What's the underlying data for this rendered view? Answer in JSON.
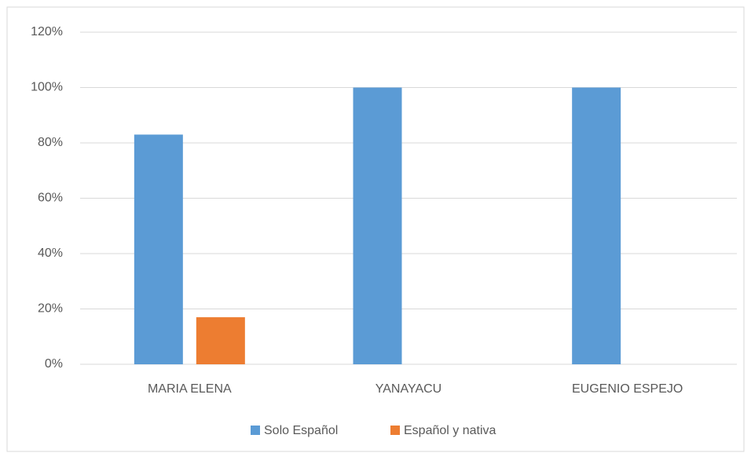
{
  "chart_data": {
    "type": "bar",
    "categories": [
      "MARIA ELENA",
      "YANAYACU",
      "EUGENIO ESPEJO"
    ],
    "series": [
      {
        "name": "Solo Español",
        "color": "#5b9bd5",
        "values": [
          83,
          100,
          100
        ]
      },
      {
        "name": "Español y nativa",
        "color": "#ed7d31",
        "values": [
          17,
          0,
          0
        ]
      }
    ],
    "ylim": [
      0,
      120
    ],
    "yticks": [
      {
        "value": 0,
        "label": "0%"
      },
      {
        "value": 20,
        "label": "20%"
      },
      {
        "value": 40,
        "label": "40%"
      },
      {
        "value": 60,
        "label": "60%"
      },
      {
        "value": 80,
        "label": "80%"
      },
      {
        "value": 100,
        "label": "100%"
      },
      {
        "value": 120,
        "label": "120%"
      }
    ],
    "grid": true,
    "legend": "bottom"
  }
}
